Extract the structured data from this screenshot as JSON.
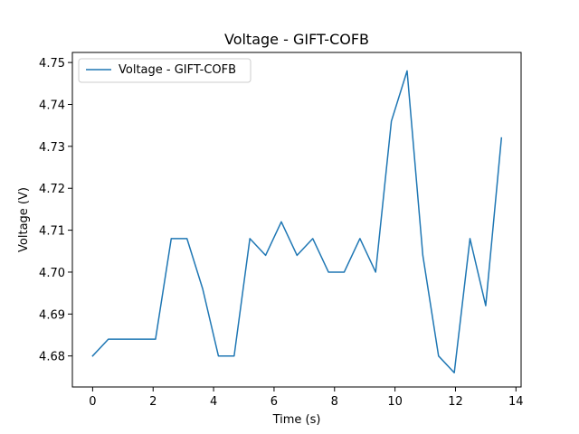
{
  "chart_data": {
    "type": "line",
    "title": "Voltage - GIFT-COFB",
    "xlabel": "Time (s)",
    "ylabel": "Voltage (V)",
    "xlim": [
      -0.67,
      14.17
    ],
    "ylim": [
      4.6726,
      4.7524
    ],
    "x_ticks": [
      0,
      2,
      4,
      6,
      8,
      10,
      12,
      14
    ],
    "y_ticks": [
      4.68,
      4.69,
      4.7,
      4.71,
      4.72,
      4.73,
      4.74,
      4.75
    ],
    "grid": false,
    "legend_position": "upper-left",
    "series": [
      {
        "name": "Voltage - GIFT-COFB",
        "color": "#1f77b4",
        "x": [
          0,
          0.52,
          1.04,
          1.56,
          2.08,
          2.6,
          3.12,
          3.64,
          4.16,
          4.68,
          5.2,
          5.72,
          6.24,
          6.76,
          7.28,
          7.8,
          8.32,
          8.84,
          9.36,
          9.88,
          10.4,
          10.92,
          11.44,
          11.96,
          12.48,
          13.0,
          13.52
        ],
        "y": [
          4.68,
          4.684,
          4.684,
          4.684,
          4.684,
          4.708,
          4.708,
          4.696,
          4.68,
          4.68,
          4.708,
          4.704,
          4.712,
          4.704,
          4.708,
          4.7,
          4.7,
          4.708,
          4.7,
          4.736,
          4.748,
          4.704,
          4.68,
          4.676,
          4.708,
          4.692,
          4.732
        ]
      }
    ]
  }
}
